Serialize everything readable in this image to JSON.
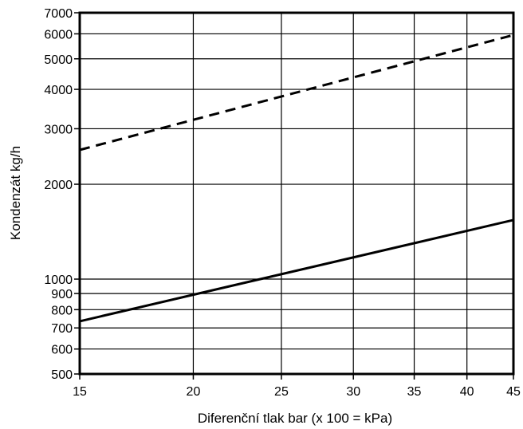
{
  "chart_data": {
    "type": "line",
    "title": "",
    "xlabel": "Diferenční tlak bar (x 100 = kPa)",
    "ylabel": "Kondenzát  kg/h",
    "x_scale": "log",
    "y_scale": "log",
    "xlim": [
      15,
      45
    ],
    "ylim": [
      500,
      7000
    ],
    "x_ticks": [
      15,
      20,
      25,
      30,
      35,
      40,
      45
    ],
    "y_ticks": [
      500,
      600,
      700,
      800,
      900,
      1000,
      2000,
      3000,
      4000,
      5000,
      6000,
      7000
    ],
    "grid": true,
    "series": [
      {
        "style": "dashed",
        "color": "#000000",
        "x": [
          15,
          45
        ],
        "y": [
          2570,
          5950
        ]
      },
      {
        "style": "solid",
        "color": "#000000",
        "x": [
          15,
          45
        ],
        "y": [
          735,
          1540
        ]
      }
    ]
  }
}
